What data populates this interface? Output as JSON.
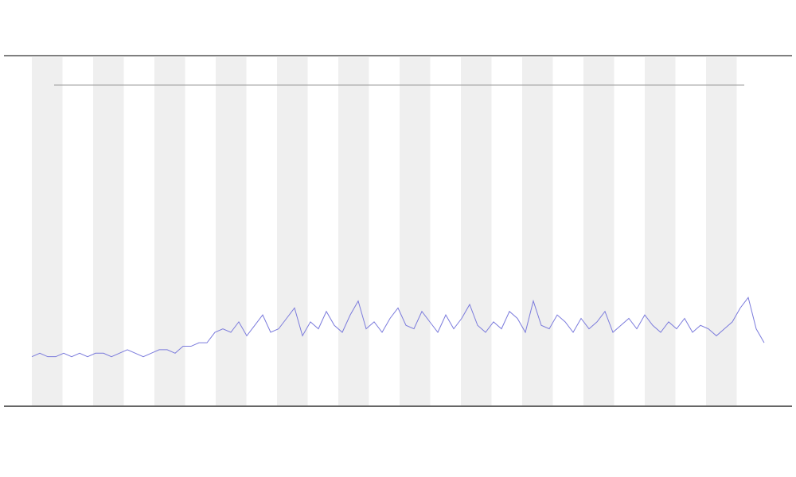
{
  "chart_data": {
    "type": "line",
    "x": [
      0,
      1,
      2,
      3,
      4,
      5,
      6,
      7,
      8,
      9,
      10,
      11,
      12,
      13,
      14,
      15,
      16,
      17,
      18,
      19,
      20,
      21,
      22,
      23,
      24,
      25,
      26,
      27,
      28,
      29,
      30,
      31,
      32,
      33,
      34,
      35,
      36,
      37,
      38,
      39,
      40,
      41,
      42,
      43,
      44,
      45,
      46,
      47,
      48,
      49,
      50,
      51,
      52,
      53,
      54,
      55,
      56,
      57,
      58,
      59,
      60,
      61,
      62,
      63,
      64,
      65,
      66,
      67,
      68,
      69,
      70,
      71,
      72,
      73,
      74,
      75,
      76,
      77,
      78,
      79,
      80,
      81,
      82,
      83,
      84,
      85,
      86,
      87,
      88,
      89,
      90,
      91,
      92
    ],
    "series": [
      {
        "color": "#7b7bdc",
        "values": [
          14,
          15,
          14,
          14,
          15,
          14,
          15,
          14,
          15,
          15,
          14,
          15,
          16,
          15,
          14,
          15,
          16,
          16,
          15,
          17,
          17,
          18,
          18,
          21,
          22,
          21,
          24,
          20,
          23,
          26,
          21,
          22,
          25,
          28,
          20,
          24,
          22,
          27,
          23,
          21,
          26,
          30,
          22,
          24,
          21,
          25,
          28,
          23,
          22,
          27,
          24,
          21,
          26,
          22,
          25,
          29,
          23,
          21,
          24,
          22,
          27,
          25,
          21,
          30,
          23,
          22,
          26,
          24,
          21,
          25,
          22,
          24,
          27,
          21,
          23,
          25,
          22,
          26,
          23,
          21,
          24,
          22,
          25,
          21,
          23,
          22,
          20,
          22,
          24,
          28,
          31,
          22,
          18
        ]
      }
    ],
    "xlim": [
      0,
      92
    ],
    "ylim": [
      0,
      100
    ]
  }
}
